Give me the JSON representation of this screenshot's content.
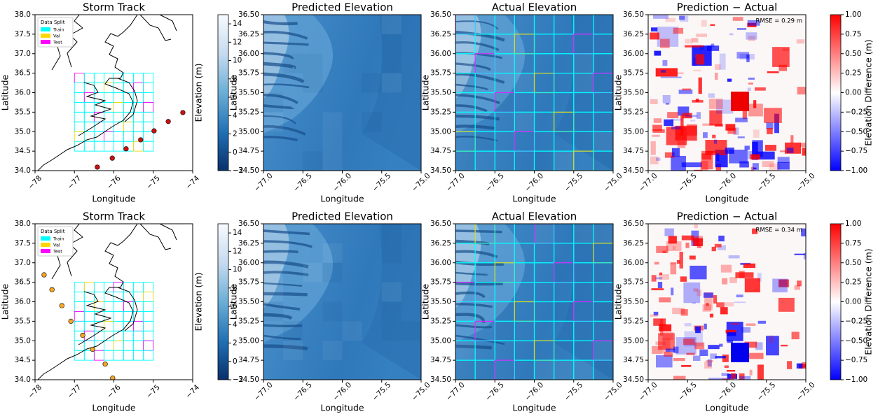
{
  "chart_data": [
    {
      "type": "scatter",
      "title": "Storm Track",
      "x_label": "Longitude",
      "y_label": "Latitude",
      "xlim": [
        -78,
        -74
      ],
      "ylim": [
        34,
        38
      ],
      "xticks": [
        {
          "value": -78,
          "label": "−78"
        },
        {
          "value": -77,
          "label": "−77"
        },
        {
          "value": -76,
          "label": "−76"
        },
        {
          "value": -75,
          "label": "−75"
        },
        {
          "value": -74,
          "label": "−74"
        }
      ],
      "yticks": [
        {
          "value": 34,
          "label": "34.0"
        },
        {
          "value": 34.5,
          "label": "34.5"
        },
        {
          "value": 35,
          "label": "35.0"
        },
        {
          "value": 35.5,
          "label": "35.5"
        },
        {
          "value": 36,
          "label": "36.0"
        },
        {
          "value": 36.5,
          "label": "36.5"
        },
        {
          "value": 37,
          "label": "37.0"
        },
        {
          "value": 37.5,
          "label": "37.5"
        },
        {
          "value": 38,
          "label": "38.0"
        }
      ],
      "legend": {
        "title": "Data Split",
        "position": "upper left",
        "entries": [
          {
            "name": "Train",
            "color": "#00ffff"
          },
          {
            "name": "Val",
            "color": "#ffd700"
          },
          {
            "name": "Test",
            "color": "#ff00ff"
          }
        ]
      },
      "series": [
        {
          "color": "#cc1111",
          "x": [
            -76.42,
            -76.04,
            -75.69,
            -75.32,
            -74.98,
            -74.62,
            -74.25
          ],
          "y": [
            34.09,
            34.32,
            34.56,
            34.79,
            35.02,
            35.26,
            35.49
          ]
        }
      ]
    },
    {
      "type": "image",
      "title": "Predicted Elevation",
      "x_label": "Longitude",
      "y_label": "Latitude",
      "xlim": [
        -77,
        -75
      ],
      "ylim": [
        34.5,
        36.5
      ],
      "xticks": [
        {
          "value": -77,
          "label": "−77.0"
        },
        {
          "value": -76.5,
          "label": "−76.5"
        },
        {
          "value": -76,
          "label": "−76.0"
        },
        {
          "value": -75.5,
          "label": "−75.5"
        },
        {
          "value": -75,
          "label": "−75.0"
        }
      ],
      "yticks": [
        {
          "value": 34.5,
          "label": "34.50"
        },
        34.75,
        {
          "value": 35,
          "label": "35.00"
        },
        35.25,
        {
          "value": 35.5,
          "label": "35.50"
        },
        35.75,
        {
          "value": 36,
          "label": "36.00"
        },
        36.25,
        {
          "value": 36.5,
          "label": "36.50"
        }
      ],
      "colorbar": {
        "label": "Elevation (m)",
        "colormap": "Blues_r",
        "lim": [
          -2,
          15
        ],
        "ticks": [
          {
            "value": -2,
            "label": "−2"
          },
          0,
          2,
          4,
          6,
          8,
          10,
          12,
          14
        ]
      }
    },
    {
      "type": "image",
      "title": "Actual Elevation",
      "x_label": "Longitude",
      "y_label": "Latitude",
      "tiles": true,
      "xlim": [
        -77,
        -75
      ],
      "ylim": [
        34.5,
        36.5
      ],
      "xticks": [
        {
          "value": -77,
          "label": "−77.0"
        },
        {
          "value": -76.5,
          "label": "−76.5"
        },
        {
          "value": -76,
          "label": "−76.0"
        },
        {
          "value": -75.5,
          "label": "−75.5"
        },
        {
          "value": -75,
          "label": "−75.0"
        }
      ],
      "yticks": [
        {
          "value": 34.5,
          "label": "34.50"
        },
        34.75,
        {
          "value": 35,
          "label": "35.00"
        },
        35.25,
        {
          "value": 35.5,
          "label": "35.50"
        },
        35.75,
        {
          "value": 36,
          "label": "36.00"
        },
        36.25,
        {
          "value": 36.5,
          "label": "36.50"
        }
      ]
    },
    {
      "type": "image",
      "title": "Prediction − Actual",
      "x_label": "Longitude",
      "y_label": "Latitude",
      "annotation": "RMSE = 0.29 m",
      "xlim": [
        -77,
        -75
      ],
      "ylim": [
        34.5,
        36.5
      ],
      "xticks": [
        {
          "value": -77,
          "label": "−77.0"
        },
        {
          "value": -76.5,
          "label": "−76.5"
        },
        {
          "value": -76,
          "label": "−76.0"
        },
        {
          "value": -75.5,
          "label": "−75.5"
        },
        {
          "value": -75,
          "label": "−75.0"
        }
      ],
      "yticks": [
        {
          "value": 34.5,
          "label": "34.50"
        },
        34.75,
        {
          "value": 35,
          "label": "35.00"
        },
        35.25,
        {
          "value": 35.5,
          "label": "35.50"
        },
        35.75,
        {
          "value": 36,
          "label": "36.00"
        },
        36.25,
        {
          "value": 36.5,
          "label": "36.50"
        }
      ],
      "colorbar": {
        "label": "Elevation Difference (m)",
        "colormap": "bwr",
        "lim": [
          -1,
          1
        ],
        "ticks": [
          {
            "value": -1,
            "label": "−1.00"
          },
          {
            "value": -0.75,
            "label": "−0.75"
          },
          {
            "value": -0.5,
            "label": "−0.50"
          },
          {
            "value": -0.25,
            "label": "−0.25"
          },
          {
            "value": 0,
            "label": "0.00"
          },
          0.25,
          {
            "value": 0.5,
            "label": "0.50"
          },
          0.75,
          {
            "value": 1,
            "label": "1.00"
          }
        ]
      }
    },
    {
      "type": "scatter",
      "title": "Storm Track",
      "x_label": "Longitude",
      "y_label": "Latitude",
      "xlim": [
        -78,
        -74
      ],
      "ylim": [
        34,
        38
      ],
      "xticks": [
        {
          "value": -78,
          "label": "−78"
        },
        {
          "value": -77,
          "label": "−77"
        },
        {
          "value": -76,
          "label": "−76"
        },
        {
          "value": -75,
          "label": "−75"
        },
        {
          "value": -74,
          "label": "−74"
        }
      ],
      "yticks": [
        {
          "value": 34,
          "label": "34.0"
        },
        {
          "value": 34.5,
          "label": "34.5"
        },
        {
          "value": 35,
          "label": "35.0"
        },
        {
          "value": 35.5,
          "label": "35.5"
        },
        {
          "value": 36,
          "label": "36.0"
        },
        {
          "value": 36.5,
          "label": "36.5"
        },
        {
          "value": 37,
          "label": "37.0"
        },
        {
          "value": 37.5,
          "label": "37.5"
        },
        {
          "value": 38,
          "label": "38.0"
        }
      ],
      "legend": {
        "title": "Data Split",
        "position": "upper left",
        "entries": [
          {
            "name": "Train",
            "color": "#00ffff"
          },
          {
            "name": "Val",
            "color": "#ffd700"
          },
          {
            "name": "Test",
            "color": "#ff00ff"
          }
        ]
      },
      "series": [
        {
          "color": "#f5a623",
          "x": [
            -77.77,
            -77.57,
            -77.32,
            -77.09,
            -76.79,
            -76.54,
            -76.22,
            -76.03
          ],
          "y": [
            36.69,
            36.31,
            35.9,
            35.5,
            35.14,
            34.78,
            34.4,
            34.04
          ]
        }
      ]
    },
    {
      "type": "image",
      "title": "Predicted Elevation",
      "x_label": "Longitude",
      "y_label": "Latitude",
      "xlim": [
        -77,
        -75
      ],
      "ylim": [
        34.5,
        36.5
      ],
      "xticks": [
        {
          "value": -77,
          "label": "−77.0"
        },
        {
          "value": -76.5,
          "label": "−76.5"
        },
        {
          "value": -76,
          "label": "−76.0"
        },
        {
          "value": -75.5,
          "label": "−75.5"
        },
        {
          "value": -75,
          "label": "−75.0"
        }
      ],
      "yticks": [
        {
          "value": 34.5,
          "label": "34.50"
        },
        34.75,
        {
          "value": 35,
          "label": "35.00"
        },
        35.25,
        {
          "value": 35.5,
          "label": "35.50"
        },
        35.75,
        {
          "value": 36,
          "label": "36.00"
        },
        36.25,
        {
          "value": 36.5,
          "label": "36.50"
        }
      ],
      "colorbar": {
        "label": "Elevation (m)",
        "colormap": "Blues_r",
        "lim": [
          -2,
          15
        ],
        "ticks": [
          {
            "value": -2,
            "label": "−2"
          },
          0,
          2,
          4,
          6,
          8,
          10,
          12,
          14
        ]
      }
    },
    {
      "type": "image",
      "title": "Actual Elevation",
      "x_label": "Longitude",
      "y_label": "Latitude",
      "tiles": true,
      "xlim": [
        -77,
        -75
      ],
      "ylim": [
        34.5,
        36.5
      ],
      "xticks": [
        {
          "value": -77,
          "label": "−77.0"
        },
        {
          "value": -76.5,
          "label": "−76.5"
        },
        {
          "value": -76,
          "label": "−76.0"
        },
        {
          "value": -75.5,
          "label": "−75.5"
        },
        {
          "value": -75,
          "label": "−75.0"
        }
      ],
      "yticks": [
        {
          "value": 34.5,
          "label": "34.50"
        },
        34.75,
        {
          "value": 35,
          "label": "35.00"
        },
        35.25,
        {
          "value": 35.5,
          "label": "35.50"
        },
        35.75,
        {
          "value": 36,
          "label": "36.00"
        },
        36.25,
        {
          "value": 36.5,
          "label": "36.50"
        }
      ]
    },
    {
      "type": "image",
      "title": "Prediction − Actual",
      "x_label": "Longitude",
      "y_label": "Latitude",
      "annotation": "RMSE = 0.34 m",
      "xlim": [
        -77,
        -75
      ],
      "ylim": [
        34.5,
        36.5
      ],
      "xticks": [
        {
          "value": -77,
          "label": "−77.0"
        },
        {
          "value": -76.5,
          "label": "−76.5"
        },
        {
          "value": -76,
          "label": "−76.0"
        },
        {
          "value": -75.5,
          "label": "−75.5"
        },
        {
          "value": -75,
          "label": "−75.0"
        }
      ],
      "yticks": [
        {
          "value": 34.5,
          "label": "34.50"
        },
        34.75,
        {
          "value": 35,
          "label": "35.00"
        },
        35.25,
        {
          "value": 35.5,
          "label": "35.50"
        },
        35.75,
        {
          "value": 36,
          "label": "36.00"
        },
        36.25,
        {
          "value": 36.5,
          "label": "36.50"
        }
      ],
      "colorbar": {
        "label": "Elevation Difference (m)",
        "colormap": "bwr",
        "lim": [
          -1,
          1
        ],
        "ticks": [
          {
            "value": -1,
            "label": "−1.00"
          },
          {
            "value": -0.75,
            "label": "−0.75"
          },
          {
            "value": -0.5,
            "label": "−0.50"
          },
          {
            "value": -0.25,
            "label": "−0.25"
          },
          {
            "value": 0,
            "label": "0.00"
          },
          0.25,
          {
            "value": 0.5,
            "label": "0.50"
          },
          0.75,
          {
            "value": 1,
            "label": "1.00"
          }
        ]
      }
    }
  ]
}
